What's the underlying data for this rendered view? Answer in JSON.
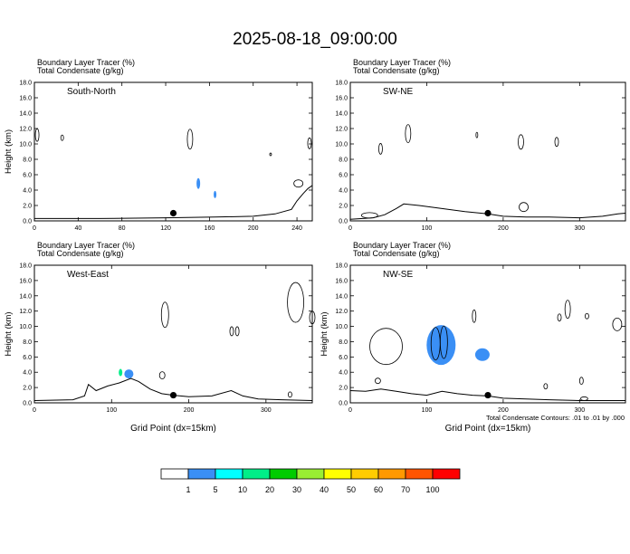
{
  "title": "2025-08-18_09:00:00",
  "colors": {
    "terrain": "#000000",
    "condensate": "#000000",
    "marker": "#000000"
  },
  "footnote": "Total Condensate Contours: .01 to .01 by .000",
  "colorbar": {
    "labels": [
      "1",
      "5",
      "10",
      "20",
      "30",
      "40",
      "50",
      "60",
      "70",
      "100"
    ],
    "colors": [
      "#ffffff",
      "#3a8ff5",
      "#00ffff",
      "#00ee88",
      "#00cc00",
      "#99ee33",
      "#ffff00",
      "#ffcc00",
      "#ff9900",
      "#ff5500",
      "#ff0000"
    ]
  },
  "chart_data": [
    {
      "type": "contour",
      "header_line1": "Boundary Layer Tracer   (%)",
      "header_line2": "Total Condensate   (g/kg)",
      "panel_label": "South-North",
      "xlabel": "",
      "ylabel": "Height (km)",
      "xlim": [
        0,
        254
      ],
      "ylim": [
        0,
        18
      ],
      "xticks": [
        "0",
        "40",
        "80",
        "120",
        "160",
        "200",
        "240"
      ],
      "yticks": [
        "0.0",
        "2.0",
        "4.0",
        "6.0",
        "8.0",
        "10.0",
        "12.0",
        "14.0",
        "16.0",
        "18.0"
      ],
      "marker_x": 127,
      "terrain": [
        [
          0,
          0.3
        ],
        [
          60,
          0.3
        ],
        [
          120,
          0.4
        ],
        [
          165,
          0.5
        ],
        [
          200,
          0.6
        ],
        [
          220,
          0.9
        ],
        [
          235,
          1.5
        ],
        [
          240,
          2.6
        ],
        [
          246,
          3.6
        ],
        [
          250,
          4.2
        ],
        [
          254,
          4.6
        ]
      ]
    },
    {
      "type": "contour",
      "header_line1": "Boundary Layer Tracer   (%)",
      "header_line2": "Total Condensate   (g/kg)",
      "panel_label": "SW-NE",
      "xlabel": "",
      "ylabel": "",
      "xlim": [
        0,
        360
      ],
      "ylim": [
        0,
        18
      ],
      "xticks": [
        "0",
        "100",
        "200",
        "300"
      ],
      "yticks": [
        "0.0",
        "2.0",
        "4.0",
        "6.0",
        "8.0",
        "10.0",
        "12.0",
        "14.0",
        "16.0",
        "18.0"
      ],
      "marker_x": 180,
      "terrain": [
        [
          0,
          0.2
        ],
        [
          30,
          0.4
        ],
        [
          45,
          0.8
        ],
        [
          60,
          1.6
        ],
        [
          70,
          2.2
        ],
        [
          90,
          2.0
        ],
        [
          120,
          1.6
        ],
        [
          150,
          1.2
        ],
        [
          180,
          0.9
        ],
        [
          200,
          0.6
        ],
        [
          230,
          0.5
        ],
        [
          260,
          0.5
        ],
        [
          300,
          0.4
        ],
        [
          330,
          0.6
        ],
        [
          350,
          0.9
        ],
        [
          360,
          1.0
        ]
      ]
    },
    {
      "type": "contour",
      "header_line1": "Boundary Layer Tracer   (%)",
      "header_line2": "Total Condensate   (g/kg)",
      "panel_label": "West-East",
      "xlabel": "Grid Point (dx=15km)",
      "ylabel": "Height (km)",
      "xlim": [
        0,
        360
      ],
      "ylim": [
        0,
        18
      ],
      "xticks": [
        "0",
        "100",
        "200",
        "300"
      ],
      "yticks": [
        "0.0",
        "2.0",
        "4.0",
        "6.0",
        "8.0",
        "10.0",
        "12.0",
        "14.0",
        "16.0",
        "18.0"
      ],
      "marker_x": 180,
      "terrain": [
        [
          0,
          0.3
        ],
        [
          50,
          0.4
        ],
        [
          65,
          0.9
        ],
        [
          70,
          2.4
        ],
        [
          80,
          1.6
        ],
        [
          95,
          2.2
        ],
        [
          110,
          2.6
        ],
        [
          125,
          3.2
        ],
        [
          135,
          2.8
        ],
        [
          150,
          1.8
        ],
        [
          165,
          1.2
        ],
        [
          180,
          1.0
        ],
        [
          200,
          0.8
        ],
        [
          230,
          0.9
        ],
        [
          255,
          1.6
        ],
        [
          270,
          0.9
        ],
        [
          290,
          0.5
        ],
        [
          320,
          0.4
        ],
        [
          360,
          0.3
        ]
      ]
    },
    {
      "type": "contour",
      "header_line1": "Boundary Layer Tracer   (%)",
      "header_line2": "Total Condensate   (g/kg)",
      "panel_label": "NW-SE",
      "xlabel": "Grid Point (dx=15km)",
      "ylabel": "Height (km)",
      "xlim": [
        0,
        360
      ],
      "ylim": [
        0,
        18
      ],
      "xticks": [
        "0",
        "100",
        "200",
        "300"
      ],
      "yticks": [
        "0.0",
        "2.0",
        "4.0",
        "6.0",
        "8.0",
        "10.0",
        "12.0",
        "14.0",
        "16.0",
        "18.0"
      ],
      "marker_x": 180,
      "terrain": [
        [
          0,
          1.6
        ],
        [
          20,
          1.5
        ],
        [
          40,
          1.8
        ],
        [
          60,
          1.5
        ],
        [
          80,
          1.2
        ],
        [
          100,
          1.0
        ],
        [
          120,
          1.5
        ],
        [
          140,
          1.2
        ],
        [
          160,
          1.0
        ],
        [
          180,
          0.9
        ],
        [
          200,
          0.6
        ],
        [
          230,
          0.5
        ],
        [
          260,
          0.4
        ],
        [
          300,
          0.3
        ],
        [
          360,
          0.3
        ]
      ]
    }
  ]
}
